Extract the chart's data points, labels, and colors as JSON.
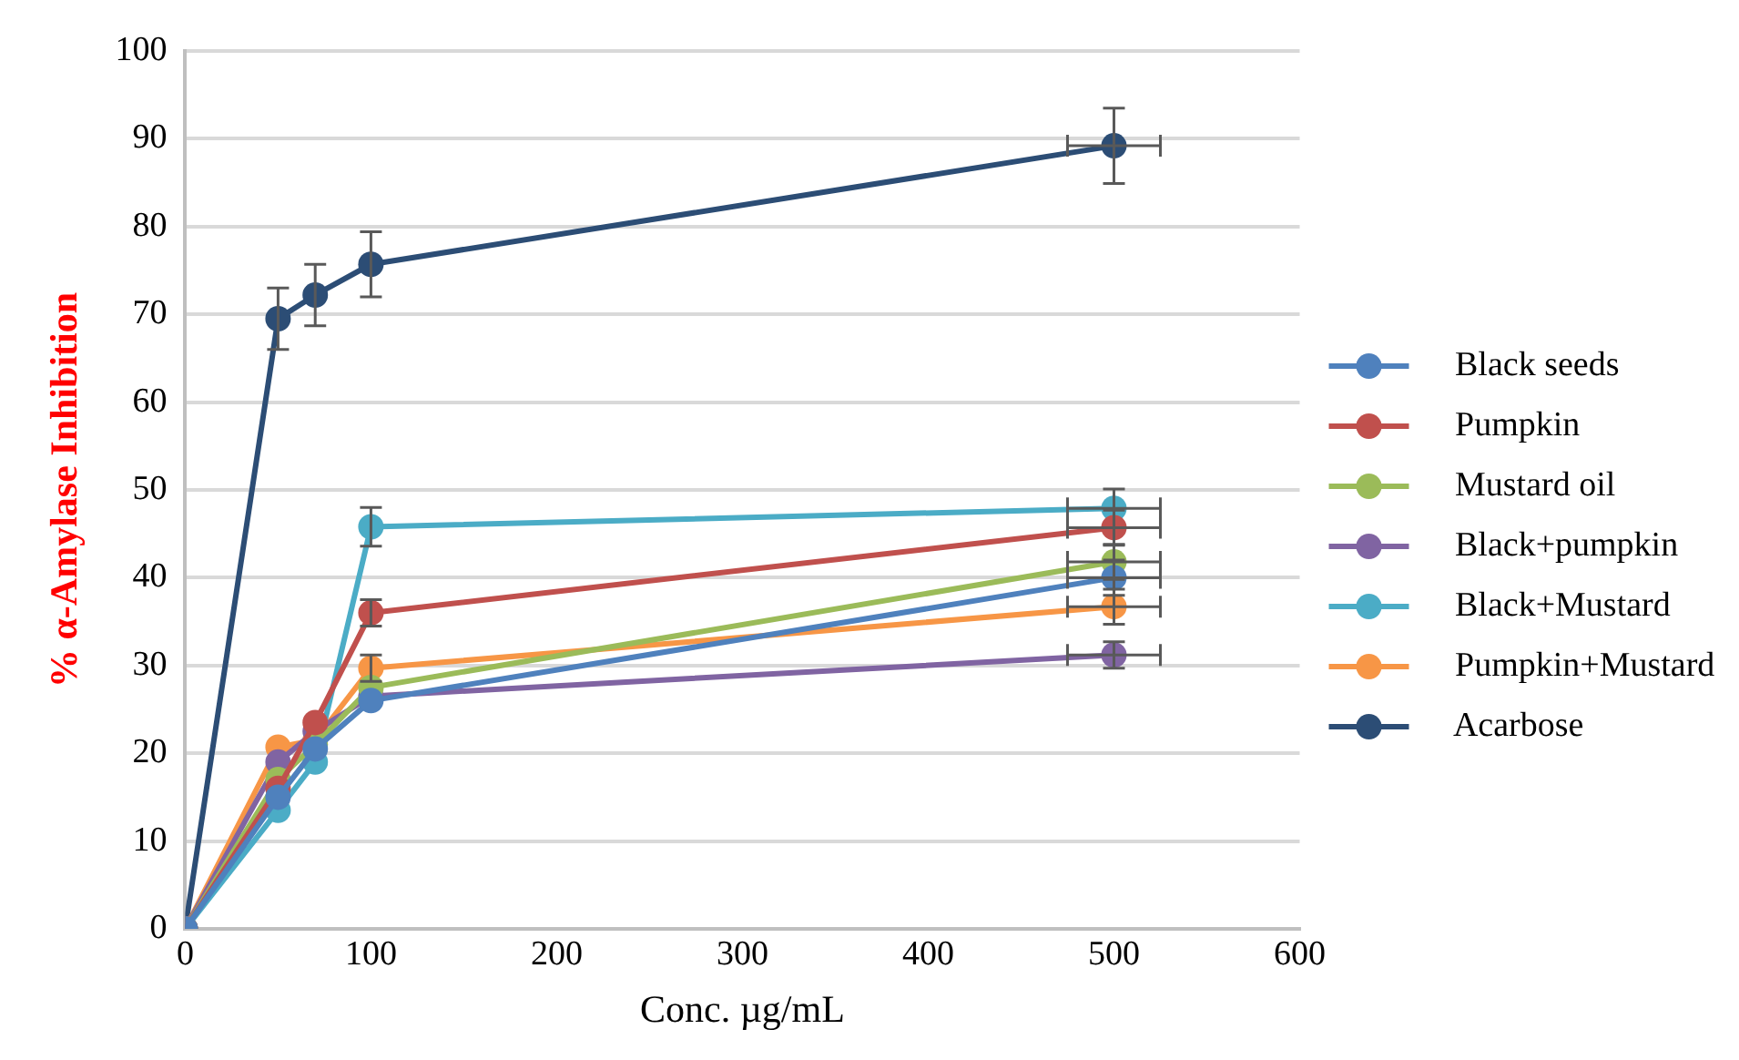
{
  "chart_data": {
    "type": "line",
    "xlabel": "Conc. µg/mL",
    "ylabel": "% α-Amylase Inhibition",
    "x": [
      0,
      50,
      70,
      100,
      500
    ],
    "xlim": [
      0,
      600
    ],
    "xticks": [
      0,
      100,
      200,
      300,
      400,
      500,
      600
    ],
    "ylim": [
      0,
      100
    ],
    "yticks": [
      0,
      10,
      20,
      30,
      40,
      50,
      60,
      70,
      80,
      90,
      100
    ],
    "grid": "y",
    "legend": "right",
    "marker": "circle",
    "line_style": "solid",
    "series": [
      {
        "name": "Black seeds",
        "color": "#4f81bd",
        "values": [
          0,
          15,
          20.5,
          26,
          40
        ],
        "errors": [
          null,
          null,
          null,
          null,
          2
        ],
        "xerrors": [
          null,
          null,
          null,
          null,
          25
        ]
      },
      {
        "name": "Pumpkin",
        "color": "#c0504d",
        "values": [
          0,
          16,
          23.5,
          36,
          45.7
        ],
        "errors": [
          null,
          null,
          null,
          1.5,
          2
        ],
        "xerrors": [
          null,
          null,
          null,
          null,
          25
        ]
      },
      {
        "name": "Mustard oil",
        "color": "#9bbb59",
        "values": [
          0,
          17,
          21,
          27.5,
          41.8
        ],
        "errors": [
          null,
          null,
          null,
          null,
          2
        ],
        "xerrors": [
          null,
          null,
          null,
          null,
          25
        ]
      },
      {
        "name": "Black+pumpkin",
        "color": "#8064a2",
        "values": [
          0,
          19,
          22.5,
          26.5,
          31.2
        ],
        "errors": [
          null,
          null,
          null,
          null,
          1.5
        ],
        "xerrors": [
          null,
          null,
          null,
          null,
          25
        ]
      },
      {
        "name": "Black+Mustard",
        "color": "#4bacc6",
        "values": [
          0,
          13.5,
          19,
          45.8,
          47.9
        ],
        "errors": [
          null,
          null,
          null,
          2.2,
          2.2
        ],
        "xerrors": [
          null,
          null,
          null,
          null,
          25
        ]
      },
      {
        "name": "Pumpkin+Mustard",
        "color": "#f79646",
        "values": [
          0,
          20.7,
          21.5,
          29.7,
          36.7
        ],
        "errors": [
          null,
          null,
          null,
          1.5,
          2
        ],
        "xerrors": [
          null,
          null,
          null,
          null,
          25
        ]
      },
      {
        "name": "Acarbose",
        "color": "#2c4d75",
        "values": [
          0,
          69.5,
          72.2,
          75.7,
          89.2
        ],
        "errors": [
          null,
          3.5,
          3.5,
          3.7,
          4.3
        ],
        "xerrors": [
          null,
          null,
          null,
          null,
          25
        ]
      }
    ]
  }
}
